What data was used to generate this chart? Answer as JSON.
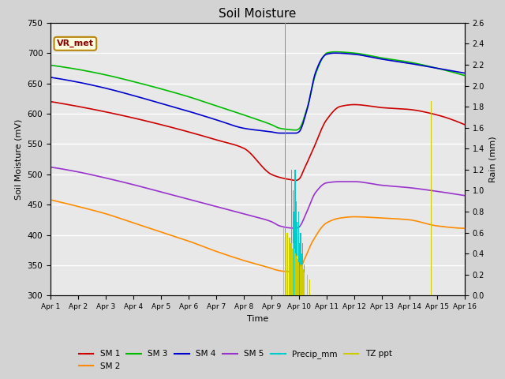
{
  "title": "Soil Moisture",
  "xlabel": "Time",
  "ylabel_left": "Soil Moisture (mV)",
  "ylabel_right": "Rain (mm)",
  "ylim_left": [
    300,
    750
  ],
  "ylim_right": [
    0.0,
    2.6
  ],
  "yticks_left": [
    300,
    350,
    400,
    450,
    500,
    550,
    600,
    650,
    700,
    750
  ],
  "yticks_right": [
    0.0,
    0.2,
    0.4,
    0.6,
    0.8,
    1.0,
    1.2,
    1.4,
    1.6,
    1.8,
    2.0,
    2.2,
    2.4,
    2.6
  ],
  "xtick_labels": [
    "Apr 1",
    "Apr 2",
    "Apr 3",
    "Apr 4",
    "Apr 5",
    "Apr 6",
    "Apr 7",
    "Apr 8",
    "Apr 9",
    "Apr 10",
    "Apr 11",
    "Apr 12",
    "Apr 13",
    "Apr 14",
    "Apr 15",
    "Apr 16"
  ],
  "background_color": "#d3d3d3",
  "plot_bg_color": "#e8e8e8",
  "annotation_box": "VR_met",
  "annotation_box_color": "#b8860b",
  "annotation_text_color": "#8b0000",
  "colors": {
    "SM1": "#cc0000",
    "SM2": "#ff8c00",
    "SM3": "#00bb00",
    "SM4": "#0000cc",
    "SM5": "#9933cc",
    "Precip_mm": "#00cccc",
    "TZ_ppt": "#cccc00"
  },
  "legend_order": [
    "SM 1",
    "SM 2",
    "SM 3",
    "SM 4",
    "SM 5",
    "Precip_mm",
    "TZ ppt"
  ]
}
